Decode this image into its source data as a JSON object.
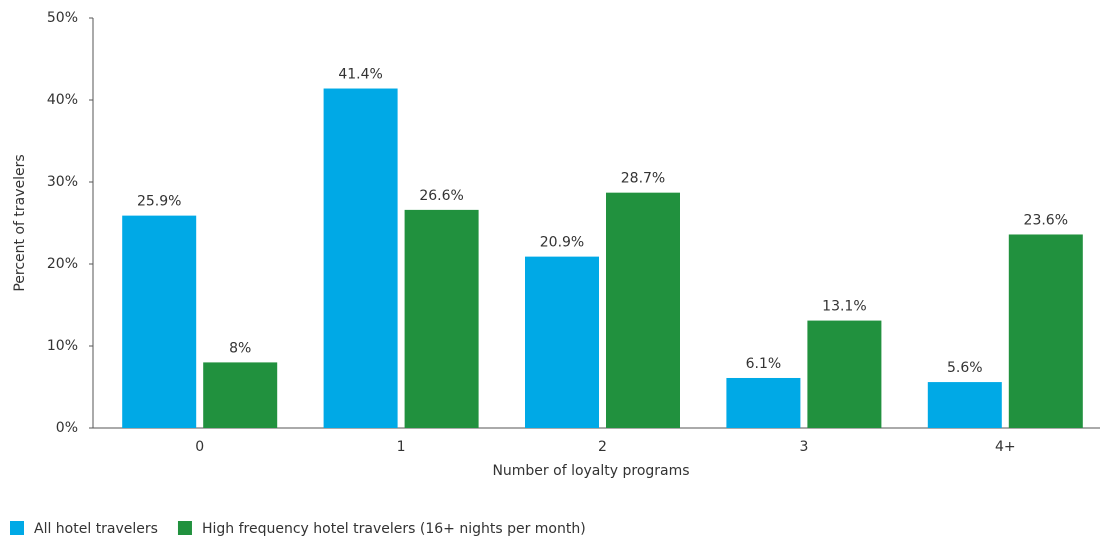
{
  "chart_data": {
    "type": "bar",
    "x_label": "Number of loyalty programs",
    "y_label": "Percent of travelers",
    "categories": [
      "0",
      "1",
      "2",
      "3",
      "4+"
    ],
    "series": [
      {
        "name": "All hotel travelers",
        "color": "#00a9e6",
        "values": [
          25.9,
          41.4,
          20.9,
          6.1,
          5.6
        ],
        "value_labels": [
          "25.9%",
          "41.4%",
          "20.9%",
          "6.1%",
          "5.6%"
        ]
      },
      {
        "name": "High frequency hotel travelers (16+ nights per month)",
        "color": "#21913e",
        "values": [
          8,
          26.6,
          28.7,
          13.1,
          23.6
        ],
        "value_labels": [
          "8%",
          "26.6%",
          "28.7%",
          "13.1%",
          "23.6%"
        ]
      }
    ],
    "ylim": [
      0,
      50
    ],
    "yticks": [
      {
        "value": 0,
        "label": "0%"
      },
      {
        "value": 10,
        "label": "10%"
      },
      {
        "value": 20,
        "label": "20%"
      },
      {
        "value": 30,
        "label": "30%"
      },
      {
        "value": 40,
        "label": "40%"
      },
      {
        "value": 50,
        "label": "50%"
      }
    ],
    "grid": false,
    "legend": "bottom-left"
  }
}
